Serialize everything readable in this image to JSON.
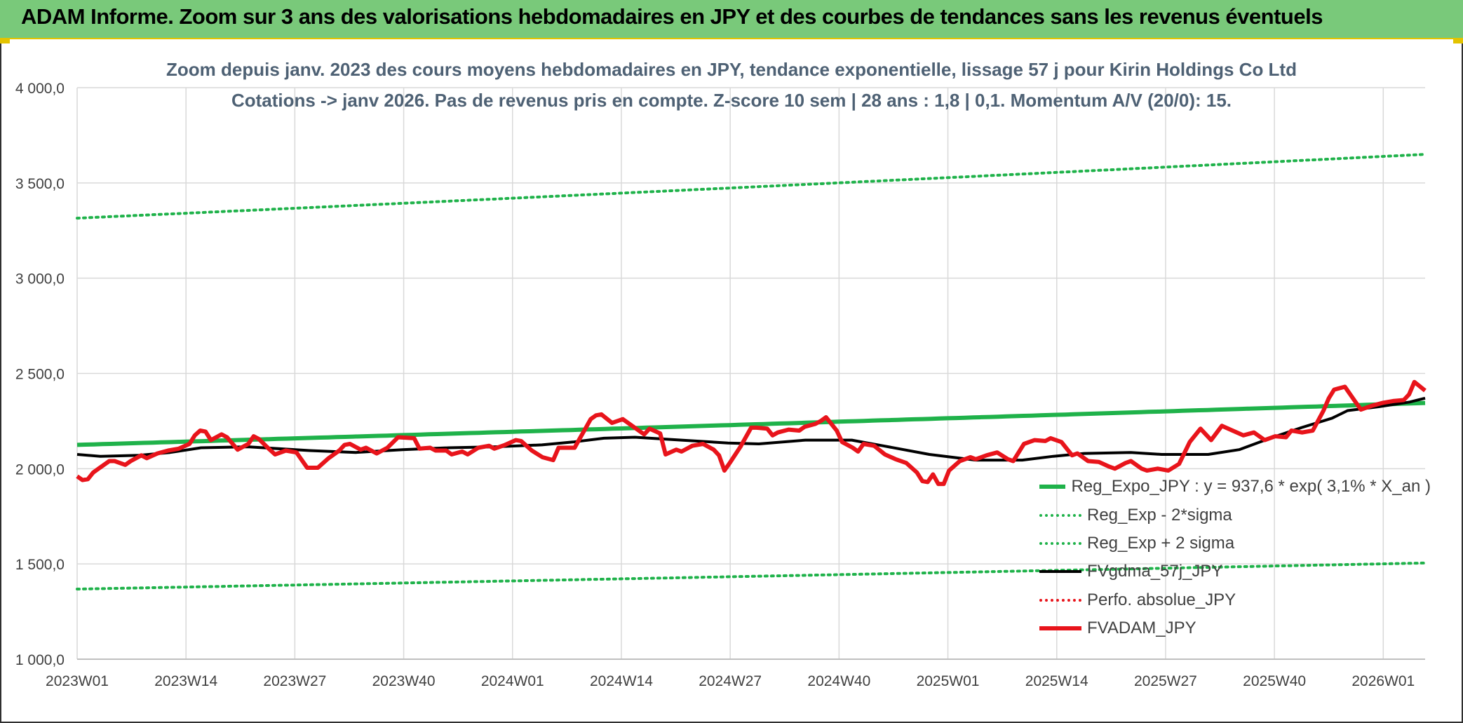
{
  "header": {
    "title": "ADAM Informe. Zoom sur 3 ans des valorisations hebdomadaires en JPY et des courbes de tendances sans les revenus éventuels"
  },
  "colors": {
    "header_bg": "#79c97a",
    "accent_yellow": "#e3c300",
    "trend_green": "#1fb24a",
    "fv_black": "#000000",
    "adam_red": "#e8141b",
    "grid": "#d9d9d9",
    "title_text": "#4e6174"
  },
  "chart_data": {
    "type": "line",
    "title_line1": "Zoom depuis janv. 2023 des cours moyens hebdomadaires en JPY, tendance exponentielle, lissage 57 j pour Kirin Holdings Co Ltd",
    "title_line2": "Cotations -> janv 2026. Pas de revenus pris en compte. Z-score 10 sem | 28 ans : 1,8 | 0,1. Momentum A/V (20/0): 15.",
    "ylim": [
      1000,
      4000
    ],
    "y_ticks": [
      "1 000,0",
      "1 500,0",
      "2 000,0",
      "2 500,0",
      "3 000,0",
      "3 500,0",
      "4 000,0"
    ],
    "x_ticks": [
      "2023W01",
      "2023W14",
      "2023W27",
      "2023W40",
      "2024W01",
      "2024W14",
      "2024W27",
      "2024W40",
      "2025W01",
      "2025W14",
      "2025W27",
      "2025W40",
      "2026W01"
    ],
    "x_tick_index": [
      0,
      13,
      26,
      39,
      52,
      65,
      78,
      91,
      104,
      117,
      130,
      143,
      156
    ],
    "n_points": 162,
    "series": [
      {
        "name": "Reg_Expo_JPY : y = 937,6 * exp( 3,1% *  X_an )",
        "style": "solid-thick",
        "color": "#1fb24a",
        "start": 2125,
        "end": 2345
      },
      {
        "name": "Reg_Exp - 2*sigma",
        "style": "dotted",
        "color": "#1fb24a",
        "start": 1368,
        "end": 1505
      },
      {
        "name": "Reg_Exp + 2 sigma",
        "style": "dotted",
        "color": "#1fb24a",
        "start": 3315,
        "end": 3650
      },
      {
        "name": "FVgdma_57j_JPY",
        "style": "solid",
        "color": "#000000",
        "anchors": [
          [
            0,
            2075
          ],
          [
            3,
            2065
          ],
          [
            8,
            2070
          ],
          [
            12,
            2085
          ],
          [
            16,
            2110
          ],
          [
            22,
            2115
          ],
          [
            30,
            2095
          ],
          [
            36,
            2085
          ],
          [
            42,
            2100
          ],
          [
            48,
            2110
          ],
          [
            54,
            2115
          ],
          [
            60,
            2125
          ],
          [
            64,
            2140
          ],
          [
            68,
            2160
          ],
          [
            72,
            2165
          ],
          [
            78,
            2150
          ],
          [
            84,
            2135
          ],
          [
            88,
            2130
          ],
          [
            94,
            2150
          ],
          [
            100,
            2150
          ],
          [
            104,
            2120
          ],
          [
            110,
            2075
          ],
          [
            116,
            2045
          ],
          [
            122,
            2045
          ],
          [
            126,
            2065
          ],
          [
            130,
            2080
          ],
          [
            136,
            2085
          ],
          [
            140,
            2075
          ],
          [
            146,
            2075
          ],
          [
            150,
            2100
          ],
          [
            154,
            2160
          ],
          [
            158,
            2215
          ],
          [
            162,
            2265
          ],
          [
            164,
            2305
          ],
          [
            168,
            2325
          ],
          [
            172,
            2350
          ],
          [
            174,
            2370
          ]
        ]
      },
      {
        "name": "Perfo. absolue_JPY",
        "style": "dotted",
        "color": "#e8141b",
        "anchors": []
      },
      {
        "name": "FVADAM_JPY",
        "style": "solid-thick",
        "color": "#e8141b",
        "anchors": [
          [
            0,
            1960
          ],
          [
            1,
            1940
          ],
          [
            2,
            1945
          ],
          [
            3,
            1980
          ],
          [
            4,
            2000
          ],
          [
            6,
            2040
          ],
          [
            7,
            2040
          ],
          [
            9,
            2020
          ],
          [
            10,
            2040
          ],
          [
            12,
            2070
          ],
          [
            13,
            2055
          ],
          [
            15,
            2080
          ],
          [
            17,
            2095
          ],
          [
            19,
            2105
          ],
          [
            21,
            2130
          ],
          [
            22,
            2175
          ],
          [
            23,
            2200
          ],
          [
            24,
            2195
          ],
          [
            25,
            2150
          ],
          [
            27,
            2180
          ],
          [
            28,
            2165
          ],
          [
            30,
            2100
          ],
          [
            32,
            2130
          ],
          [
            33,
            2170
          ],
          [
            34,
            2155
          ],
          [
            36,
            2100
          ],
          [
            37,
            2075
          ],
          [
            39,
            2095
          ],
          [
            41,
            2085
          ],
          [
            43,
            2005
          ],
          [
            45,
            2005
          ],
          [
            47,
            2055
          ],
          [
            49,
            2095
          ],
          [
            50,
            2125
          ],
          [
            51,
            2130
          ],
          [
            53,
            2100
          ],
          [
            54,
            2110
          ],
          [
            56,
            2080
          ],
          [
            58,
            2110
          ],
          [
            60,
            2165
          ],
          [
            63,
            2160
          ],
          [
            64,
            2105
          ],
          [
            66,
            2110
          ],
          [
            67,
            2095
          ],
          [
            69,
            2095
          ],
          [
            70,
            2075
          ],
          [
            72,
            2090
          ],
          [
            73,
            2075
          ],
          [
            75,
            2110
          ],
          [
            77,
            2120
          ],
          [
            78,
            2105
          ],
          [
            80,
            2125
          ],
          [
            82,
            2150
          ],
          [
            83,
            2145
          ],
          [
            85,
            2095
          ],
          [
            87,
            2060
          ],
          [
            89,
            2045
          ],
          [
            90,
            2110
          ],
          [
            93,
            2110
          ],
          [
            94,
            2160
          ],
          [
            95,
            2210
          ],
          [
            96,
            2260
          ],
          [
            97,
            2280
          ],
          [
            98,
            2285
          ],
          [
            100,
            2240
          ],
          [
            102,
            2260
          ],
          [
            104,
            2220
          ],
          [
            106,
            2180
          ],
          [
            107,
            2210
          ],
          [
            109,
            2185
          ],
          [
            110,
            2075
          ],
          [
            112,
            2100
          ],
          [
            113,
            2090
          ],
          [
            115,
            2120
          ],
          [
            117,
            2130
          ],
          [
            119,
            2100
          ],
          [
            120,
            2070
          ],
          [
            121,
            1990
          ],
          [
            122,
            2030
          ],
          [
            124,
            2115
          ],
          [
            126,
            2215
          ],
          [
            127,
            2215
          ],
          [
            129,
            2210
          ],
          [
            130,
            2175
          ],
          [
            131,
            2190
          ],
          [
            133,
            2205
          ],
          [
            135,
            2200
          ],
          [
            136,
            2220
          ],
          [
            138,
            2235
          ],
          [
            139,
            2250
          ],
          [
            140,
            2270
          ],
          [
            142,
            2200
          ],
          [
            143,
            2140
          ],
          [
            145,
            2110
          ],
          [
            146,
            2090
          ],
          [
            147,
            2130
          ],
          [
            149,
            2120
          ],
          [
            151,
            2075
          ],
          [
            153,
            2050
          ],
          [
            155,
            2030
          ],
          [
            157,
            1980
          ],
          [
            158,
            1935
          ],
          [
            159,
            1930
          ],
          [
            160,
            1970
          ],
          [
            161,
            1920
          ],
          [
            162,
            1920
          ],
          [
            163,
            1990
          ],
          [
            165,
            2040
          ],
          [
            167,
            2060
          ],
          [
            168,
            2050
          ],
          [
            170,
            2070
          ],
          [
            172,
            2085
          ],
          [
            174,
            2050
          ],
          [
            175,
            2040
          ],
          [
            177,
            2130
          ],
          [
            179,
            2150
          ],
          [
            181,
            2145
          ],
          [
            182,
            2160
          ],
          [
            184,
            2140
          ],
          [
            186,
            2070
          ],
          [
            187,
            2080
          ],
          [
            189,
            2040
          ],
          [
            191,
            2035
          ],
          [
            193,
            2010
          ],
          [
            194,
            2000
          ],
          [
            196,
            2030
          ],
          [
            197,
            2040
          ],
          [
            199,
            2000
          ],
          [
            200,
            1990
          ],
          [
            202,
            2000
          ],
          [
            204,
            1990
          ],
          [
            206,
            2025
          ],
          [
            208,
            2140
          ],
          [
            210,
            2210
          ],
          [
            212,
            2150
          ],
          [
            214,
            2225
          ],
          [
            216,
            2200
          ],
          [
            218,
            2175
          ],
          [
            220,
            2190
          ],
          [
            222,
            2150
          ],
          [
            224,
            2170
          ],
          [
            226,
            2165
          ],
          [
            227,
            2200
          ],
          [
            229,
            2190
          ],
          [
            231,
            2200
          ],
          [
            233,
            2305
          ],
          [
            234,
            2370
          ],
          [
            235,
            2415
          ],
          [
            237,
            2430
          ],
          [
            239,
            2350
          ],
          [
            240,
            2310
          ],
          [
            242,
            2330
          ],
          [
            244,
            2345
          ],
          [
            246,
            2355
          ],
          [
            248,
            2360
          ],
          [
            249,
            2390
          ],
          [
            250,
            2455
          ],
          [
            252,
            2410
          ]
        ]
      }
    ],
    "legend_position": "bottom-right"
  },
  "legend": [
    {
      "label": "Reg_Expo_JPY : y = 937,6 * exp( 3,1% *  X_an )",
      "color": "#1fb24a",
      "style": "solid-thick"
    },
    {
      "label": "Reg_Exp - 2*sigma",
      "color": "#1fb24a",
      "style": "dotted"
    },
    {
      "label": "Reg_Exp + 2 sigma",
      "color": "#1fb24a",
      "style": "dotted"
    },
    {
      "label": "FVgdma_57j_JPY",
      "color": "#000000",
      "style": "solid"
    },
    {
      "label": "Perfo. absolue_JPY",
      "color": "#e8141b",
      "style": "dotted"
    },
    {
      "label": "FVADAM_JPY",
      "color": "#e8141b",
      "style": "solid-thick"
    }
  ]
}
